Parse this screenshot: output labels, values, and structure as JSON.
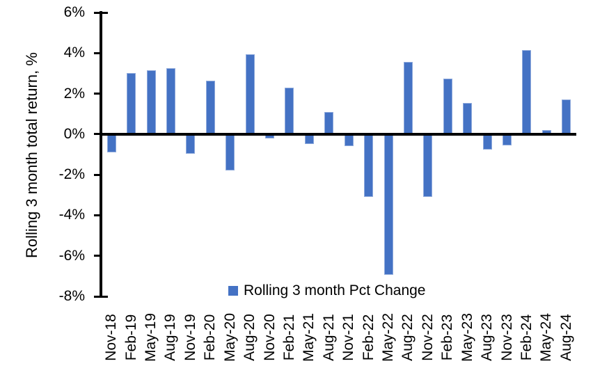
{
  "chart_data": {
    "type": "bar",
    "title": "",
    "xlabel": "",
    "ylabel": "Rolling 3 month total return, %",
    "ylim": [
      -8,
      6
    ],
    "ytick_step": 2,
    "ytick_labels": [
      "6%",
      "4%",
      "2%",
      "0%",
      "-2%",
      "-4%",
      "-6%",
      "-8%"
    ],
    "grid": false,
    "legend_position": "bottom-center",
    "legend_label": "Rolling 3 month Pct Change",
    "bar_color": "#4472C4",
    "bar_border_color": "#8FAADC",
    "axis_color": "#000000",
    "categories": [
      "Nov-18",
      "Feb-19",
      "May-19",
      "Aug-19",
      "Nov-19",
      "Feb-20",
      "May-20",
      "Aug-20",
      "Nov-20",
      "Feb-21",
      "May-21",
      "Aug-21",
      "Nov-21",
      "Feb-22",
      "May-22",
      "Aug-22",
      "Nov-22",
      "Feb-23",
      "May-23",
      "Aug-23",
      "Nov-23",
      "Feb-24",
      "May-24",
      "Aug-24"
    ],
    "values": [
      -0.9,
      3.0,
      3.15,
      3.25,
      -0.95,
      2.65,
      -1.8,
      3.95,
      -0.2,
      2.3,
      -0.5,
      1.1,
      -0.6,
      -3.1,
      -6.95,
      3.55,
      -3.1,
      2.75,
      1.55,
      -0.75,
      -0.55,
      4.15,
      0.2,
      1.7
    ]
  }
}
